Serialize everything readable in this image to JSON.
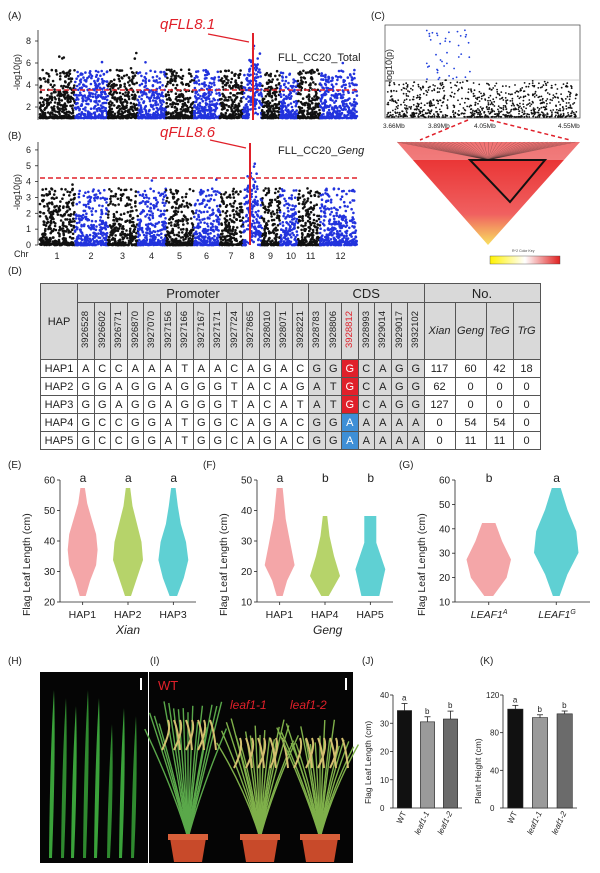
{
  "panels": {
    "A": "(A)",
    "B": "(B)",
    "C": "(C)",
    "D": "(D)",
    "E": "(E)",
    "F": "(F)",
    "G": "(G)",
    "H": "(H)",
    "I": "(I)",
    "J": "(J)",
    "K": "(K)"
  },
  "manhattanA": {
    "qtl": "qFLL8.1",
    "trait": "FLL_CC20_Total",
    "ylabel": "-log10(p)",
    "yticks": [
      "2",
      "4",
      "6",
      "8"
    ]
  },
  "manhattanB": {
    "qtl": "qFLL8.6",
    "trait": "FLL_CC20_",
    "trait_it": "Geng",
    "ylabel": "-log10(p)",
    "yticks": [
      "0",
      "1",
      "2",
      "3",
      "4",
      "5",
      "6"
    ],
    "chr_label": "Chr",
    "chrs": [
      "1",
      "2",
      "3",
      "4",
      "5",
      "6",
      "7",
      "8",
      "9",
      "10",
      "11",
      "12"
    ]
  },
  "regional": {
    "ylabel": "-log10(p)",
    "xticks": [
      "3.66Mb",
      "3.89Mb",
      "4.05Mb",
      "4.55Mb"
    ],
    "ld_legend": "R^2 Color Key"
  },
  "table": {
    "hap": "HAP",
    "promoter": "Promoter",
    "cds": "CDS",
    "no": "No.",
    "positions": [
      "3926528",
      "3926602",
      "3926771",
      "3926870",
      "3927070",
      "3927156",
      "3927166",
      "3927167",
      "3927171",
      "3927724",
      "3927865",
      "3928010",
      "3928071",
      "3928221",
      "3928783",
      "3928806",
      "3928812",
      "3928993",
      "3929014",
      "3929017",
      "3932102"
    ],
    "groups": [
      "Xian",
      "Geng",
      "TeG",
      "TrG"
    ],
    "rows": [
      {
        "name": "HAP1",
        "alleles": [
          "A",
          "C",
          "C",
          "A",
          "A",
          "A",
          "T",
          "A",
          "A",
          "C",
          "A",
          "G",
          "A",
          "C",
          "G",
          "G",
          "G",
          "C",
          "A",
          "G",
          "G"
        ],
        "counts": [
          "117",
          "60",
          "42",
          "18"
        ]
      },
      {
        "name": "HAP2",
        "alleles": [
          "G",
          "G",
          "A",
          "G",
          "G",
          "A",
          "G",
          "G",
          "G",
          "T",
          "A",
          "C",
          "A",
          "G",
          "A",
          "T",
          "G",
          "C",
          "A",
          "G",
          "G"
        ],
        "counts": [
          "62",
          "0",
          "0",
          "0"
        ]
      },
      {
        "name": "HAP3",
        "alleles": [
          "G",
          "G",
          "A",
          "G",
          "G",
          "A",
          "G",
          "G",
          "G",
          "T",
          "A",
          "C",
          "A",
          "T",
          "A",
          "T",
          "G",
          "C",
          "A",
          "G",
          "G"
        ],
        "counts": [
          "127",
          "0",
          "0",
          "0"
        ]
      },
      {
        "name": "HAP4",
        "alleles": [
          "G",
          "C",
          "C",
          "G",
          "G",
          "A",
          "T",
          "G",
          "G",
          "C",
          "A",
          "G",
          "A",
          "C",
          "G",
          "G",
          "A",
          "A",
          "A",
          "A",
          "A"
        ],
        "counts": [
          "0",
          "54",
          "54",
          "0"
        ]
      },
      {
        "name": "HAP5",
        "alleles": [
          "G",
          "C",
          "C",
          "G",
          "G",
          "A",
          "T",
          "G",
          "G",
          "C",
          "A",
          "G",
          "A",
          "C",
          "G",
          "G",
          "A",
          "A",
          "A",
          "A",
          "A"
        ],
        "counts": [
          "0",
          "11",
          "11",
          "0"
        ]
      }
    ]
  },
  "chart_data": [
    {
      "type": "violin",
      "panel": "E",
      "ylabel": "Flag Leaf Length (cm)",
      "ylim": [
        20,
        60
      ],
      "yticks": [
        "20",
        "30",
        "40",
        "50",
        "60"
      ],
      "categories": [
        "HAP1",
        "HAP2",
        "HAP3"
      ],
      "letters": [
        "a",
        "a",
        "a"
      ],
      "xlabel": "Xian",
      "colors": [
        "#f4a6a8",
        "#b6d36a",
        "#5fd0d3"
      ]
    },
    {
      "type": "violin",
      "panel": "F",
      "ylabel": "Flag Leaf Length (cm)",
      "ylim": [
        10,
        50
      ],
      "yticks": [
        "10",
        "20",
        "30",
        "40",
        "50"
      ],
      "categories": [
        "HAP1",
        "HAP4",
        "HAP5"
      ],
      "letters": [
        "a",
        "b",
        "b"
      ],
      "xlabel": "Geng",
      "colors": [
        "#f4a6a8",
        "#b6d36a",
        "#5fd0d3"
      ]
    },
    {
      "type": "violin",
      "panel": "G",
      "ylabel": "Flag Leaf Length (cm)",
      "ylim": [
        10,
        60
      ],
      "yticks": [
        "10",
        "20",
        "30",
        "40",
        "50",
        "60"
      ],
      "categories": [
        "LEAF1",
        "LEAF1"
      ],
      "superscripts": [
        "A",
        "G"
      ],
      "letters": [
        "b",
        "a"
      ],
      "colors": [
        "#f4a6a8",
        "#5fd0d3"
      ]
    },
    {
      "type": "bar",
      "panel": "J",
      "ylabel": "Flag Leaf Length (cm)",
      "ylim": [
        0,
        40
      ],
      "yticks": [
        "0",
        "10",
        "20",
        "30",
        "40"
      ],
      "categories": [
        "WT",
        "leaf1-1",
        "leaf1-2"
      ],
      "values": [
        34.5,
        30.5,
        31.5
      ],
      "errors": [
        2.5,
        1.8,
        2.8
      ],
      "letters": [
        "a",
        "b",
        "b"
      ]
    },
    {
      "type": "bar",
      "panel": "K",
      "ylabel": "Plant Height (cm)",
      "ylim": [
        0,
        120
      ],
      "yticks": [
        "0",
        "40",
        "80",
        "120"
      ],
      "categories": [
        "WT",
        "leaf1-1",
        "leaf1-2"
      ],
      "values": [
        105,
        96,
        100
      ],
      "errors": [
        4,
        3,
        3
      ],
      "letters": [
        "a",
        "b",
        "b"
      ]
    }
  ],
  "photoI": {
    "labels": [
      "WT",
      "leaf1-1",
      "leaf1-2"
    ]
  }
}
